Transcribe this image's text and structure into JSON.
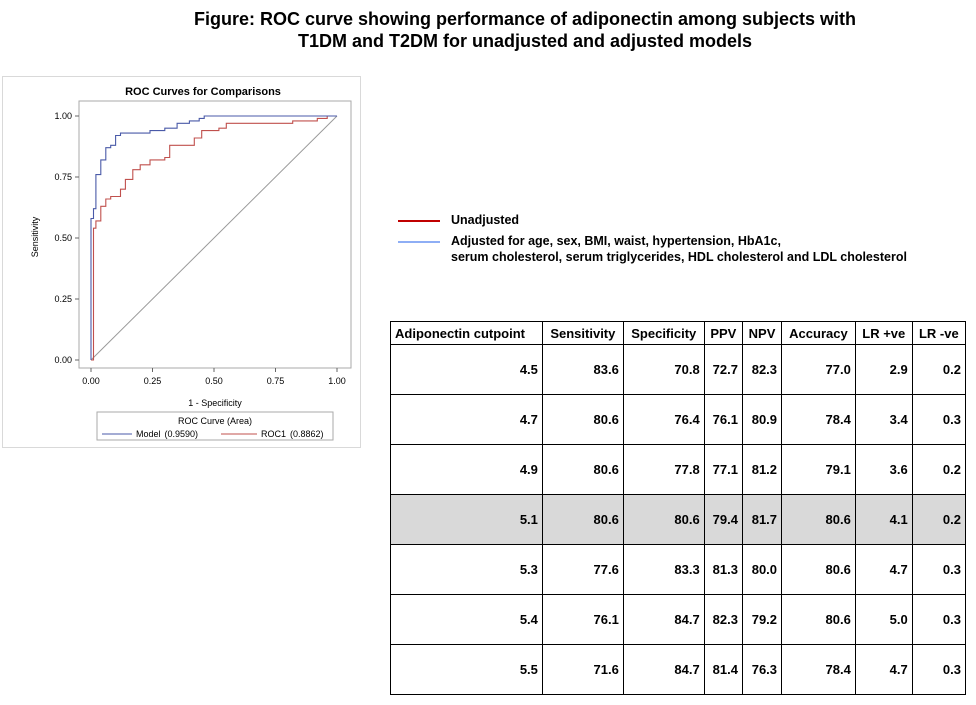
{
  "figure": {
    "title_line1": "Figure: ROC curve showing performance of adiponectin among subjects with",
    "title_line2": "T1DM and T2DM for unadjusted and adjusted models"
  },
  "chart_data": {
    "type": "line",
    "title": "ROC Curves for Comparisons",
    "xlabel": "1 - Specificity",
    "ylabel": "Sensitivity",
    "xlim": [
      0,
      1
    ],
    "ylim": [
      0,
      1
    ],
    "x_ticks": [
      "0.00",
      "0.25",
      "0.50",
      "0.75",
      "1.00"
    ],
    "y_ticks": [
      "0.00",
      "0.25",
      "0.50",
      "0.75",
      "1.00"
    ],
    "grid": false,
    "legend_title": "ROC Curve (Area)",
    "legend_position": "bottom",
    "series": [
      {
        "name": "Model",
        "area": "(0.9590)",
        "color": "#4a5aa8",
        "points": [
          [
            0,
            0
          ],
          [
            0,
            0.58
          ],
          [
            0.01,
            0.58
          ],
          [
            0.01,
            0.62
          ],
          [
            0.02,
            0.62
          ],
          [
            0.02,
            0.76
          ],
          [
            0.04,
            0.76
          ],
          [
            0.04,
            0.82
          ],
          [
            0.06,
            0.82
          ],
          [
            0.06,
            0.87
          ],
          [
            0.08,
            0.87
          ],
          [
            0.08,
            0.88
          ],
          [
            0.1,
            0.88
          ],
          [
            0.1,
            0.92
          ],
          [
            0.12,
            0.92
          ],
          [
            0.12,
            0.93
          ],
          [
            0.24,
            0.93
          ],
          [
            0.24,
            0.94
          ],
          [
            0.3,
            0.94
          ],
          [
            0.3,
            0.95
          ],
          [
            0.35,
            0.95
          ],
          [
            0.35,
            0.97
          ],
          [
            0.4,
            0.97
          ],
          [
            0.4,
            0.98
          ],
          [
            0.44,
            0.98
          ],
          [
            0.44,
            0.99
          ],
          [
            0.46,
            0.99
          ],
          [
            0.46,
            1.0
          ],
          [
            1.0,
            1.0
          ]
        ]
      },
      {
        "name": "ROC1",
        "area": "(0.8862)",
        "color": "#c0504d",
        "points": [
          [
            0,
            0
          ],
          [
            0.01,
            0.0
          ],
          [
            0.01,
            0.54
          ],
          [
            0.02,
            0.54
          ],
          [
            0.02,
            0.57
          ],
          [
            0.04,
            0.57
          ],
          [
            0.04,
            0.63
          ],
          [
            0.06,
            0.63
          ],
          [
            0.06,
            0.66
          ],
          [
            0.08,
            0.66
          ],
          [
            0.08,
            0.67
          ],
          [
            0.12,
            0.67
          ],
          [
            0.12,
            0.7
          ],
          [
            0.14,
            0.7
          ],
          [
            0.14,
            0.74
          ],
          [
            0.17,
            0.74
          ],
          [
            0.17,
            0.78
          ],
          [
            0.2,
            0.78
          ],
          [
            0.2,
            0.8
          ],
          [
            0.24,
            0.8
          ],
          [
            0.24,
            0.82
          ],
          [
            0.3,
            0.82
          ],
          [
            0.3,
            0.83
          ],
          [
            0.32,
            0.83
          ],
          [
            0.32,
            0.88
          ],
          [
            0.42,
            0.88
          ],
          [
            0.42,
            0.91
          ],
          [
            0.45,
            0.91
          ],
          [
            0.45,
            0.94
          ],
          [
            0.52,
            0.94
          ],
          [
            0.52,
            0.95
          ],
          [
            0.55,
            0.95
          ],
          [
            0.55,
            0.97
          ],
          [
            0.82,
            0.97
          ],
          [
            0.82,
            0.98
          ],
          [
            0.92,
            0.98
          ],
          [
            0.92,
            0.99
          ],
          [
            0.96,
            0.99
          ],
          [
            0.96,
            1.0
          ],
          [
            1.0,
            1.0
          ]
        ]
      }
    ]
  },
  "legend": {
    "unadjusted": {
      "label": "Unadjusted",
      "color": "#c00000"
    },
    "adjusted": {
      "line1": "Adjusted for age, sex, BMI, waist, hypertension, HbA1c,",
      "line2": "serum cholesterol, serum triglycerides, HDL cholesterol and LDL cholesterol",
      "color": "#8eaef5"
    }
  },
  "table": {
    "headers": [
      "Adiponectin cutpoint",
      "Sensitivity",
      "Specificity",
      "PPV",
      "NPV",
      "Accuracy",
      "LR +ve",
      "LR -ve"
    ],
    "rows": [
      [
        "4.5",
        "83.6",
        "70.8",
        "72.7",
        "82.3",
        "77.0",
        "2.9",
        "0.2"
      ],
      [
        "4.7",
        "80.6",
        "76.4",
        "76.1",
        "80.9",
        "78.4",
        "3.4",
        "0.3"
      ],
      [
        "4.9",
        "80.6",
        "77.8",
        "77.1",
        "81.2",
        "79.1",
        "3.6",
        "0.2"
      ],
      [
        "5.1",
        "80.6",
        "80.6",
        "79.4",
        "81.7",
        "80.6",
        "4.1",
        "0.2"
      ],
      [
        "5.3",
        "77.6",
        "83.3",
        "81.3",
        "80.0",
        "80.6",
        "4.7",
        "0.3"
      ],
      [
        "5.4",
        "76.1",
        "84.7",
        "82.3",
        "79.2",
        "80.6",
        "5.0",
        "0.3"
      ],
      [
        "5.5",
        "71.6",
        "84.7",
        "81.4",
        "76.3",
        "78.4",
        "4.7",
        "0.3"
      ]
    ],
    "highlighted_row": "5.1",
    "highlight_color": "#d9d9d9"
  }
}
